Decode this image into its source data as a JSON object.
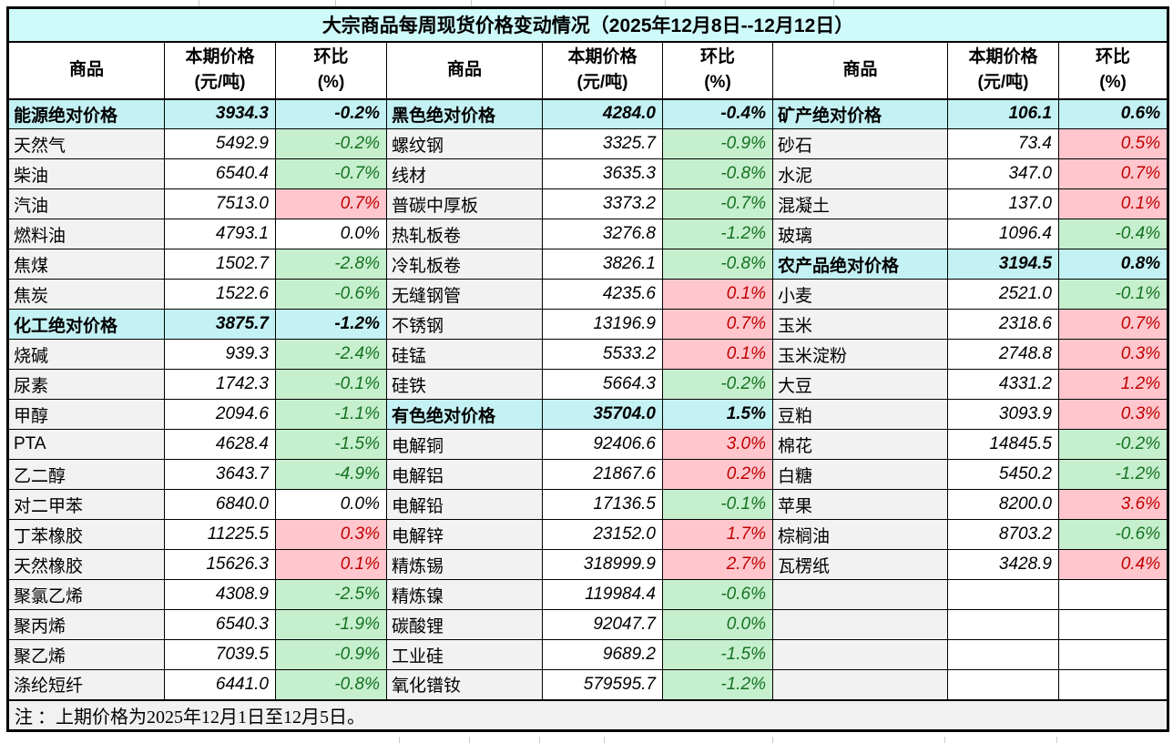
{
  "title": "大宗商品每周现货价格变动情况（2025年12月8日--12月12日）",
  "header": {
    "commodity": "商品",
    "price": "本期价格\n(元/吨)",
    "pct": "环比\n(%)"
  },
  "note": "注 ：上期价格为2025年12月1日至12月5日。",
  "colors": {
    "title_bg": "#CFFAFA",
    "section_bg": "#C4F1F3",
    "name_bg": "#F2F2F2",
    "note_bg": "#F1F1F1",
    "up_bg": "#FFC6CD",
    "up_text": "#C00000",
    "down_bg": "#C6EFCE",
    "down_text": "#157221",
    "border": "#000000"
  },
  "groups": [
    {
      "rows": [
        {
          "type": "section",
          "name": "能源绝对价格",
          "price": "3934.3",
          "pct": "-0.2%"
        },
        {
          "type": "item",
          "dir": "down",
          "name": "天然气",
          "price": "5492.9",
          "pct": "-0.2%"
        },
        {
          "type": "item",
          "dir": "down",
          "name": "柴油",
          "price": "6540.4",
          "pct": "-0.7%"
        },
        {
          "type": "item",
          "dir": "up",
          "name": "汽油",
          "price": "7513.0",
          "pct": "0.7%"
        },
        {
          "type": "item",
          "dir": "flat",
          "name": "燃料油",
          "price": "4793.1",
          "pct": "0.0%"
        },
        {
          "type": "item",
          "dir": "down",
          "name": "焦煤",
          "price": "1502.7",
          "pct": "-2.8%"
        },
        {
          "type": "item",
          "dir": "down",
          "name": "焦炭",
          "price": "1522.6",
          "pct": "-0.6%"
        },
        {
          "type": "section",
          "name": "化工绝对价格",
          "price": "3875.7",
          "pct": "-1.2%"
        },
        {
          "type": "item",
          "dir": "down",
          "name": "烧碱",
          "price": "939.3",
          "pct": "-2.4%"
        },
        {
          "type": "item",
          "dir": "down",
          "name": "尿素",
          "price": "1742.3",
          "pct": "-0.1%"
        },
        {
          "type": "item",
          "dir": "down",
          "name": "甲醇",
          "price": "2094.6",
          "pct": "-1.1%"
        },
        {
          "type": "item",
          "dir": "down",
          "name": "PTA",
          "price": "4628.4",
          "pct": "-1.5%"
        },
        {
          "type": "item",
          "dir": "down",
          "name": "乙二醇",
          "price": "3643.7",
          "pct": "-4.9%"
        },
        {
          "type": "item",
          "dir": "flat",
          "name": "对二甲苯",
          "price": "6840.0",
          "pct": "0.0%"
        },
        {
          "type": "item",
          "dir": "up",
          "name": "丁苯橡胶",
          "price": "11225.5",
          "pct": "0.3%"
        },
        {
          "type": "item",
          "dir": "up",
          "name": "天然橡胶",
          "price": "15626.3",
          "pct": "0.1%"
        },
        {
          "type": "item",
          "dir": "down",
          "name": "聚氯乙烯",
          "price": "4308.9",
          "pct": "-2.5%"
        },
        {
          "type": "item",
          "dir": "down",
          "name": "聚丙烯",
          "price": "6540.3",
          "pct": "-1.9%"
        },
        {
          "type": "item",
          "dir": "down",
          "name": "聚乙烯",
          "price": "7039.5",
          "pct": "-0.9%"
        },
        {
          "type": "item",
          "dir": "down",
          "name": "涤纶短纤",
          "price": "6441.0",
          "pct": "-0.8%"
        }
      ]
    },
    {
      "rows": [
        {
          "type": "section",
          "name": "黑色绝对价格",
          "price": "4284.0",
          "pct": "-0.4%"
        },
        {
          "type": "item",
          "dir": "down",
          "name": "螺纹钢",
          "price": "3325.7",
          "pct": "-0.9%"
        },
        {
          "type": "item",
          "dir": "down",
          "name": "线材",
          "price": "3635.3",
          "pct": "-0.8%"
        },
        {
          "type": "item",
          "dir": "down",
          "name": "普碳中厚板",
          "price": "3373.2",
          "pct": "-0.7%"
        },
        {
          "type": "item",
          "dir": "down",
          "name": "热轧板卷",
          "price": "3276.8",
          "pct": "-1.2%"
        },
        {
          "type": "item",
          "dir": "down",
          "name": "冷轧板卷",
          "price": "3826.1",
          "pct": "-0.8%"
        },
        {
          "type": "item",
          "dir": "up",
          "name": "无缝钢管",
          "price": "4235.6",
          "pct": "0.1%"
        },
        {
          "type": "item",
          "dir": "up",
          "name": "不锈钢",
          "price": "13196.9",
          "pct": "0.7%"
        },
        {
          "type": "item",
          "dir": "up",
          "name": "硅锰",
          "price": "5533.2",
          "pct": "0.1%"
        },
        {
          "type": "item",
          "dir": "down",
          "name": "硅铁",
          "price": "5664.3",
          "pct": "-0.2%"
        },
        {
          "type": "section",
          "name": "有色绝对价格",
          "price": "35704.0",
          "pct": "1.5%"
        },
        {
          "type": "item",
          "dir": "up",
          "name": "电解铜",
          "price": "92406.6",
          "pct": "3.0%"
        },
        {
          "type": "item",
          "dir": "up",
          "name": "电解铝",
          "price": "21867.6",
          "pct": "0.2%"
        },
        {
          "type": "item",
          "dir": "down",
          "name": "电解铅",
          "price": "17136.5",
          "pct": "-0.1%"
        },
        {
          "type": "item",
          "dir": "up",
          "name": "电解锌",
          "price": "23152.0",
          "pct": "1.7%"
        },
        {
          "type": "item",
          "dir": "up",
          "name": "精炼锡",
          "price": "318999.9",
          "pct": "2.7%"
        },
        {
          "type": "item",
          "dir": "down",
          "name": "精炼镍",
          "price": "119984.4",
          "pct": "-0.6%"
        },
        {
          "type": "item",
          "dir": "down",
          "name": "碳酸锂",
          "price": "92047.7",
          "pct": "0.0%"
        },
        {
          "type": "item",
          "dir": "down",
          "name": "工业硅",
          "price": "9689.2",
          "pct": "-1.5%"
        },
        {
          "type": "item",
          "dir": "down",
          "name": "氧化镨钕",
          "price": "579595.7",
          "pct": "-1.2%"
        }
      ]
    },
    {
      "rows": [
        {
          "type": "section",
          "name": "矿产绝对价格",
          "price": "106.1",
          "pct": "0.6%"
        },
        {
          "type": "item",
          "dir": "up",
          "name": "砂石",
          "price": "73.4",
          "pct": "0.5%"
        },
        {
          "type": "item",
          "dir": "up",
          "name": "水泥",
          "price": "347.0",
          "pct": "0.7%"
        },
        {
          "type": "item",
          "dir": "up",
          "name": "混凝土",
          "price": "137.0",
          "pct": "0.1%"
        },
        {
          "type": "item",
          "dir": "down",
          "name": "玻璃",
          "price": "1096.4",
          "pct": "-0.4%"
        },
        {
          "type": "section",
          "name": "农产品绝对价格",
          "price": "3194.5",
          "pct": "0.8%"
        },
        {
          "type": "item",
          "dir": "down",
          "name": "小麦",
          "price": "2521.0",
          "pct": "-0.1%"
        },
        {
          "type": "item",
          "dir": "up",
          "name": "玉米",
          "price": "2318.6",
          "pct": "0.7%"
        },
        {
          "type": "item",
          "dir": "up",
          "name": "玉米淀粉",
          "price": "2748.8",
          "pct": "0.3%"
        },
        {
          "type": "item",
          "dir": "up",
          "name": "大豆",
          "price": "4331.2",
          "pct": "1.2%"
        },
        {
          "type": "item",
          "dir": "up",
          "name": "豆粕",
          "price": "3093.9",
          "pct": "0.3%"
        },
        {
          "type": "item",
          "dir": "down",
          "name": "棉花",
          "price": "14845.5",
          "pct": "-0.2%"
        },
        {
          "type": "item",
          "dir": "down",
          "name": "白糖",
          "price": "5450.2",
          "pct": "-1.2%"
        },
        {
          "type": "item",
          "dir": "up",
          "name": "苹果",
          "price": "8200.0",
          "pct": "3.6%"
        },
        {
          "type": "item",
          "dir": "down",
          "name": "棕榈油",
          "price": "8703.2",
          "pct": "-0.6%"
        },
        {
          "type": "item",
          "dir": "up",
          "name": "瓦楞纸",
          "price": "3428.9",
          "pct": "0.4%"
        },
        {
          "type": "empty",
          "name": "",
          "price": "",
          "pct": ""
        },
        {
          "type": "empty",
          "name": "",
          "price": "",
          "pct": ""
        },
        {
          "type": "empty",
          "name": "",
          "price": "",
          "pct": ""
        },
        {
          "type": "empty",
          "name": "",
          "price": "",
          "pct": ""
        }
      ]
    }
  ]
}
